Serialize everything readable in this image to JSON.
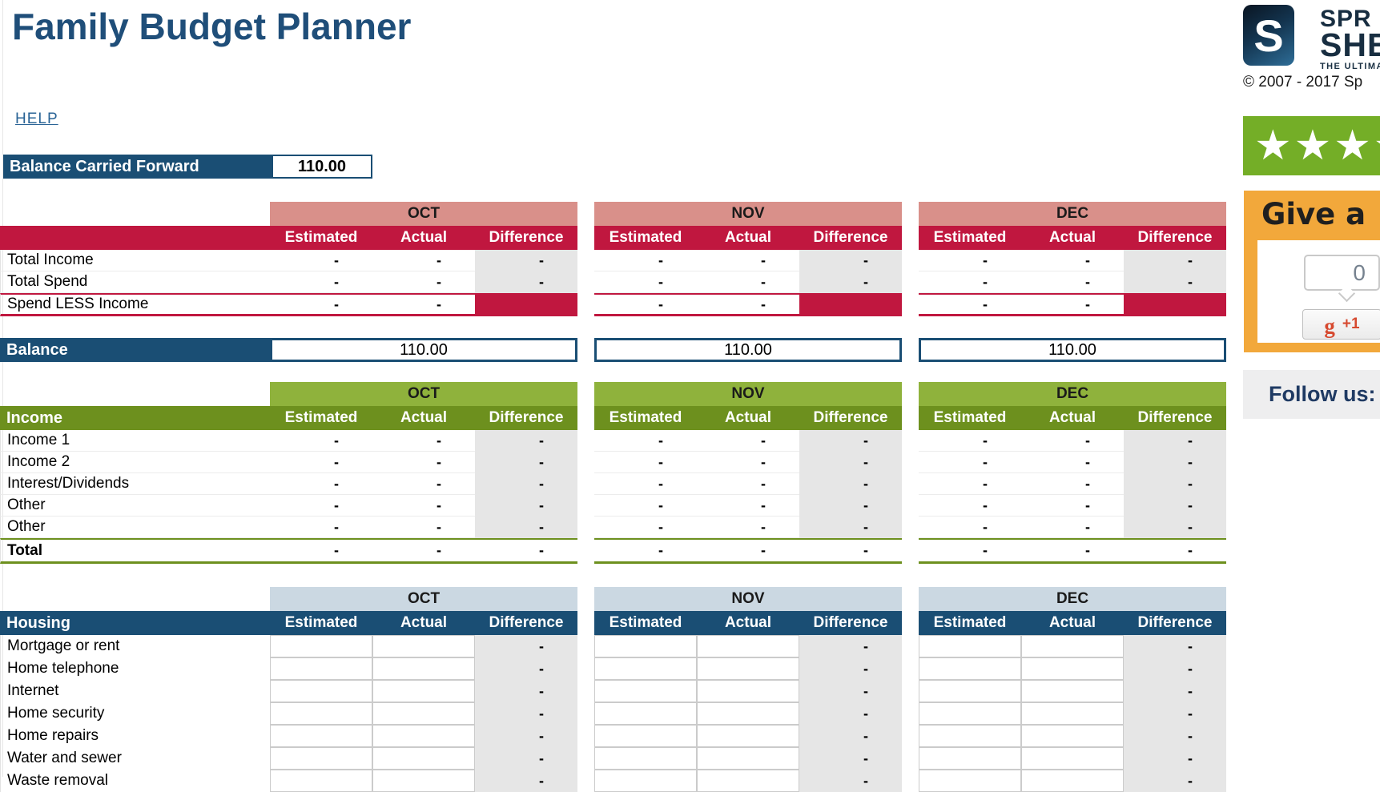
{
  "title": "Family Budget Planner",
  "help": "HELP",
  "balance_carried_forward": {
    "label": "Balance Carried Forward",
    "value": "110.00"
  },
  "months": [
    "OCT",
    "NOV",
    "DEC"
  ],
  "column_headers": [
    "Estimated",
    "Actual",
    "Difference"
  ],
  "dash": "-",
  "balance_row": {
    "label": "Balance",
    "values": [
      "110.00",
      "110.00",
      "110.00"
    ]
  },
  "sections": [
    {
      "name": "summary",
      "theme": "red",
      "label": "",
      "rows": [
        {
          "label": "Total Income",
          "type": "dash"
        },
        {
          "label": "Total Spend",
          "type": "dash"
        },
        {
          "label": "Spend LESS Income",
          "type": "spend_less"
        }
      ]
    },
    {
      "name": "income",
      "theme": "green",
      "label": "Income",
      "rows": [
        {
          "label": "Income 1",
          "type": "dash"
        },
        {
          "label": "Income 2",
          "type": "dash"
        },
        {
          "label": "Interest/Dividends",
          "type": "dash"
        },
        {
          "label": "Other",
          "type": "dash"
        },
        {
          "label": "Other",
          "type": "dash"
        }
      ],
      "total_row": {
        "label": "Total"
      }
    },
    {
      "name": "housing",
      "theme": "blue",
      "label": "Housing",
      "rows": [
        {
          "label": "Mortgage or rent",
          "type": "input"
        },
        {
          "label": "Home telephone",
          "type": "input"
        },
        {
          "label": "Internet",
          "type": "input"
        },
        {
          "label": "Home security",
          "type": "input"
        },
        {
          "label": "Home repairs",
          "type": "input"
        },
        {
          "label": "Water and sewer",
          "type": "input"
        },
        {
          "label": "Waste removal",
          "type": "input"
        }
      ]
    }
  ],
  "sidebar": {
    "logo": {
      "monogram": "S",
      "line1": "SPR",
      "line2": "SHE",
      "tagline": "THE ULTIMAT"
    },
    "copyright": "© 2007 - 2017 Sp",
    "rating": {
      "stars": "★★★★"
    },
    "give_box": {
      "title": "Give a",
      "counter": "0",
      "g": "g",
      "plus_one": "+1"
    },
    "follow": "Follow us:"
  },
  "colors": {
    "title_navy": "#1F4E79",
    "navy": "#1A4E74",
    "crimson": "#C0173F",
    "pink": "#D9908A",
    "olive": "#6D901E",
    "light_green": "#8FB23C",
    "rating_green": "#74AE27",
    "light_blue": "#CBD8E2",
    "cell_gray": "#E6E6E6",
    "orange": "#F2A83B",
    "follow_gray": "#EEEEEF",
    "link_blue": "#2A6496"
  }
}
